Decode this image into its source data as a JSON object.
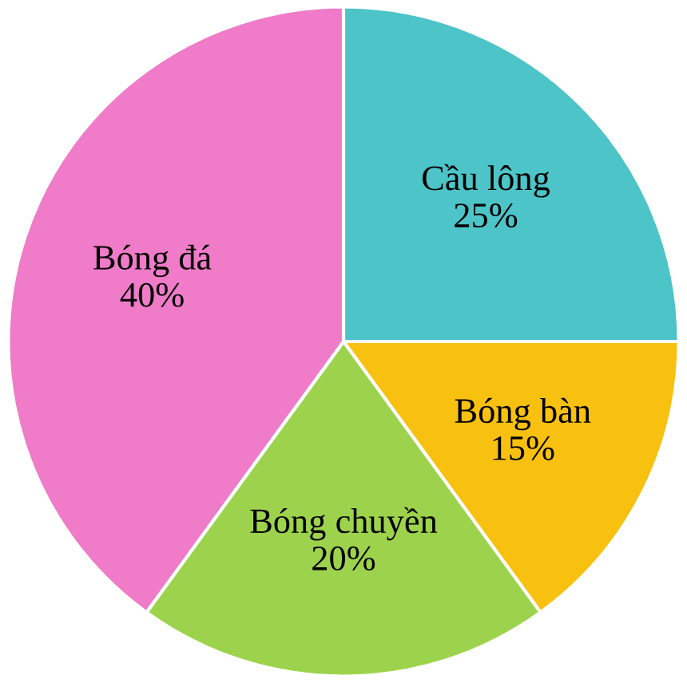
{
  "chart_data": {
    "type": "pie",
    "categories": [
      "Cầu lông",
      "Bóng bàn",
      "Bóng chuyền",
      "Bóng đá"
    ],
    "values": [
      25,
      15,
      20,
      40
    ],
    "colors": [
      "#4cc4c8",
      "#f9c10f",
      "#9dd34c",
      "#ef7bc9"
    ],
    "value_labels": [
      "25%",
      "15%",
      "20%",
      "40%"
    ],
    "legend": false
  }
}
